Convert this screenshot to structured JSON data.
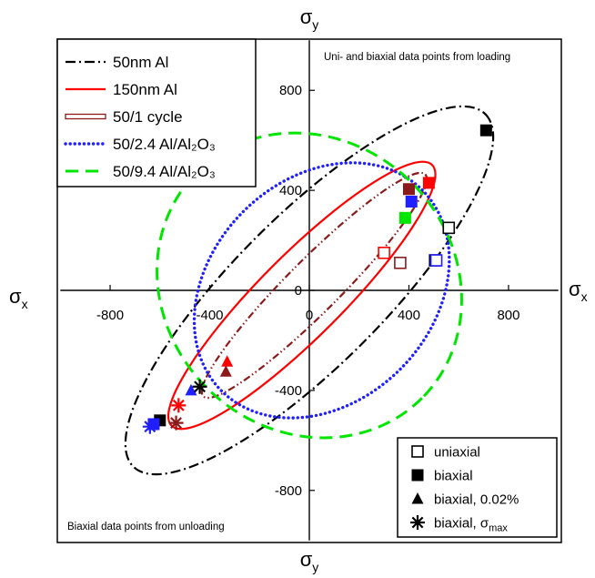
{
  "chart_data": {
    "type": "line",
    "title": "",
    "xlim": [
      -1000,
      1000
    ],
    "ylim": [
      -1000,
      1000
    ],
    "x_ticks": [
      "-800",
      "-400",
      "0",
      "400",
      "800"
    ],
    "x_tick_values": [
      -800,
      -400,
      0,
      400,
      800
    ],
    "y_ticks": [
      "800",
      "400",
      "0",
      "-400",
      "-800"
    ],
    "y_tick_values": [
      800,
      400,
      0,
      -400,
      -800
    ],
    "axis_labels": {
      "top": "σ",
      "top_sub": "y",
      "bottom": "σ",
      "bottom_sub": "y",
      "left": "σ",
      "left_sub": "x",
      "right": "σ",
      "right_sub": "x"
    },
    "annotations": {
      "top_right": "Uni- and biaxial data points from loading",
      "bottom_left": "Biaxial data points from unloading"
    },
    "series": [
      {
        "name": "50nm Al",
        "style": "dashdot",
        "color": "#000000",
        "ellipse": {
          "cx": 0,
          "cy": 0,
          "a": 1000,
          "b": 300,
          "angle_deg": 45
        }
      },
      {
        "name": "150nm Al",
        "style": "solid",
        "color": "#ff0000",
        "ellipse": {
          "cx": -30,
          "cy": -20,
          "a": 740,
          "b": 165,
          "angle_deg": 45
        }
      },
      {
        "name": "50/1 cycle",
        "style": "dashdotdot",
        "color": "#8b1a1a",
        "ellipse": {
          "cx": 20,
          "cy": 20,
          "a": 630,
          "b": 105,
          "angle_deg": 45
        }
      },
      {
        "name": "50/2.4 Al/Al₂O₃",
        "style": "dotted",
        "color": "#1f1fff",
        "ellipse": {
          "cx": 50,
          "cy": 0,
          "a": 570,
          "b": 445,
          "angle_deg": 45
        }
      },
      {
        "name": "50/9.4 Al/Al₂O₃",
        "style": "dashed",
        "color": "#00e600",
        "ellipse": {
          "cx": 0,
          "cy": 20,
          "a": 640,
          "b": 580,
          "angle_deg": -45
        }
      }
    ],
    "points": [
      {
        "series": "50nm Al",
        "kind": "uniaxial",
        "x": 560,
        "y": 250
      },
      {
        "series": "50nm Al",
        "kind": "uniaxial",
        "x": 505,
        "y": 120
      },
      {
        "series": "50nm Al",
        "kind": "biaxial",
        "x": 710,
        "y": 640
      },
      {
        "series": "150nm Al",
        "kind": "uniaxial",
        "x": 300,
        "y": 150
      },
      {
        "series": "150nm Al",
        "kind": "biaxial",
        "x": 480,
        "y": 430
      },
      {
        "series": "50/1 cycle",
        "kind": "uniaxial",
        "x": 365,
        "y": 110
      },
      {
        "series": "50/1 cycle",
        "kind": "biaxial",
        "x": 400,
        "y": 405
      },
      {
        "series": "50/2.4 Al/Al₂O₃",
        "kind": "uniaxial",
        "x": 510,
        "y": 120
      },
      {
        "series": "50/2.4 Al/Al₂O₃",
        "kind": "biaxial",
        "x": 410,
        "y": 355
      },
      {
        "series": "50/9.4 Al/Al₂O₃",
        "kind": "biaxial",
        "x": 385,
        "y": 290
      },
      {
        "series": "150nm Al",
        "kind": "biaxial-0.02",
        "x": -330,
        "y": -285
      },
      {
        "series": "50/1 cycle",
        "kind": "biaxial-0.02",
        "x": -335,
        "y": -325
      },
      {
        "series": "50/2.4 Al/Al₂O₃",
        "kind": "biaxial-0.02",
        "x": -475,
        "y": -400
      },
      {
        "series": "50nm Al",
        "kind": "biaxial",
        "x": -600,
        "y": -520
      },
      {
        "series": "50/2.4 Al/Al₂O₃",
        "kind": "biaxial",
        "x": -625,
        "y": -535
      },
      {
        "series": "150nm Al",
        "kind": "biaxial-max",
        "x": -525,
        "y": -460
      },
      {
        "series": "50nm Al",
        "kind": "biaxial-max",
        "x": -440,
        "y": -385
      },
      {
        "series": "50/1 cycle",
        "kind": "biaxial-max",
        "x": -535,
        "y": -530
      },
      {
        "series": "50/2.4 Al/Al₂O₃",
        "kind": "biaxial-max",
        "x": -640,
        "y": -545
      }
    ],
    "marker_legend": [
      {
        "kind": "uniaxial",
        "label": "uniaxial"
      },
      {
        "kind": "biaxial",
        "label": "biaxial"
      },
      {
        "kind": "biaxial-0.02",
        "label": "biaxial, 0.02%"
      },
      {
        "kind": "biaxial-max",
        "label": "biaxial, σ",
        "sub": "max"
      }
    ],
    "legend_placement": "top-left",
    "marker_legend_placement": "bottom-right",
    "grid": false
  }
}
